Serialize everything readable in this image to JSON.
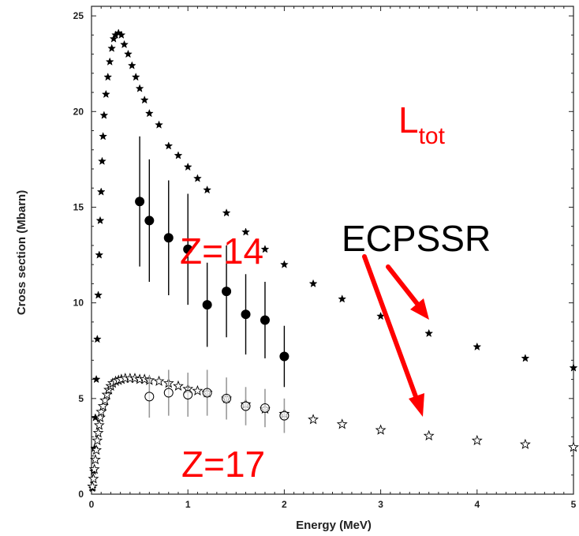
{
  "chart_data": {
    "type": "scatter",
    "xlabel": "Energy (MeV)",
    "ylabel": "Cross section (Mbarn)",
    "xlim": [
      0,
      5
    ],
    "ylim": [
      0,
      25.5
    ],
    "x_ticks": [
      0,
      1,
      2,
      3,
      4,
      5
    ],
    "y_ticks": [
      0,
      5,
      10,
      15,
      20,
      25
    ],
    "grid": false,
    "annotations": {
      "ltot_main": "L",
      "ltot_sub": "tot",
      "ecpssr": "ECPSSR",
      "z14": "Z=14",
      "z17": "Z=17"
    },
    "colors": {
      "annotation": "#ff0000",
      "marker": "#000000",
      "error_bar_z17": "#999999"
    },
    "series": [
      {
        "marker": "filled-star",
        "points": [
          [
            0.01,
            0.3
          ],
          [
            0.02,
            1.2
          ],
          [
            0.03,
            2.4
          ],
          [
            0.04,
            4.0
          ],
          [
            0.05,
            6.0
          ],
          [
            0.06,
            8.1
          ],
          [
            0.07,
            10.4
          ],
          [
            0.08,
            12.5
          ],
          [
            0.09,
            14.3
          ],
          [
            0.1,
            15.8
          ],
          [
            0.11,
            17.4
          ],
          [
            0.12,
            18.7
          ],
          [
            0.13,
            19.8
          ],
          [
            0.15,
            20.9
          ],
          [
            0.17,
            21.8
          ],
          [
            0.19,
            22.6
          ],
          [
            0.21,
            23.3
          ],
          [
            0.23,
            23.8
          ],
          [
            0.25,
            24.0
          ],
          [
            0.28,
            24.1
          ],
          [
            0.31,
            24.0
          ],
          [
            0.34,
            23.5
          ],
          [
            0.38,
            23.0
          ],
          [
            0.42,
            22.4
          ],
          [
            0.46,
            21.8
          ],
          [
            0.5,
            21.2
          ],
          [
            0.55,
            20.6
          ],
          [
            0.6,
            19.9
          ],
          [
            0.7,
            19.3
          ],
          [
            0.8,
            18.2
          ],
          [
            0.9,
            17.7
          ],
          [
            1.0,
            17.1
          ],
          [
            1.1,
            16.5
          ],
          [
            1.2,
            15.9
          ],
          [
            1.4,
            14.7
          ],
          [
            1.6,
            13.7
          ],
          [
            1.8,
            12.8
          ],
          [
            2.0,
            12.0
          ],
          [
            2.3,
            11.0
          ],
          [
            2.6,
            10.2
          ],
          [
            3.0,
            9.3
          ],
          [
            3.5,
            8.4
          ],
          [
            4.0,
            7.7
          ],
          [
            4.5,
            7.1
          ],
          [
            5.0,
            6.6
          ]
        ]
      },
      {
        "marker": "open-star",
        "points": [
          [
            0.01,
            0.4
          ],
          [
            0.02,
            0.8
          ],
          [
            0.03,
            1.3
          ],
          [
            0.04,
            1.8
          ],
          [
            0.05,
            2.3
          ],
          [
            0.06,
            2.8
          ],
          [
            0.07,
            3.2
          ],
          [
            0.08,
            3.6
          ],
          [
            0.09,
            4.0
          ],
          [
            0.1,
            4.3
          ],
          [
            0.12,
            4.6
          ],
          [
            0.14,
            4.9
          ],
          [
            0.16,
            5.2
          ],
          [
            0.18,
            5.45
          ],
          [
            0.2,
            5.65
          ],
          [
            0.22,
            5.8
          ],
          [
            0.25,
            5.9
          ],
          [
            0.28,
            5.95
          ],
          [
            0.31,
            6.0
          ],
          [
            0.35,
            6.05
          ],
          [
            0.4,
            6.05
          ],
          [
            0.45,
            6.05
          ],
          [
            0.5,
            6.0
          ],
          [
            0.55,
            6.0
          ],
          [
            0.6,
            5.95
          ],
          [
            0.7,
            5.9
          ],
          [
            0.8,
            5.8
          ],
          [
            0.9,
            5.65
          ],
          [
            1.0,
            5.5
          ],
          [
            1.1,
            5.4
          ],
          [
            1.2,
            5.3
          ],
          [
            1.4,
            5.0
          ],
          [
            1.6,
            4.7
          ],
          [
            1.8,
            4.45
          ],
          [
            2.0,
            4.2
          ],
          [
            2.3,
            3.9
          ],
          [
            2.6,
            3.65
          ],
          [
            3.0,
            3.35
          ],
          [
            3.5,
            3.05
          ],
          [
            4.0,
            2.8
          ],
          [
            4.5,
            2.6
          ],
          [
            5.0,
            2.45
          ]
        ]
      },
      {
        "marker": "filled-circle",
        "error_bars": true,
        "points": [
          {
            "x": 0.5,
            "y": 15.3,
            "err": 3.4
          },
          {
            "x": 0.6,
            "y": 14.3,
            "err": 3.2
          },
          {
            "x": 0.8,
            "y": 13.4,
            "err": 3.0
          },
          {
            "x": 1.0,
            "y": 12.8,
            "err": 2.9
          },
          {
            "x": 1.2,
            "y": 9.9,
            "err": 2.2
          },
          {
            "x": 1.4,
            "y": 10.6,
            "err": 2.4
          },
          {
            "x": 1.6,
            "y": 9.4,
            "err": 2.1
          },
          {
            "x": 1.8,
            "y": 9.1,
            "err": 2.0
          },
          {
            "x": 2.0,
            "y": 7.2,
            "err": 1.6
          }
        ]
      },
      {
        "marker": "open-circle",
        "error_bars": true,
        "points": [
          {
            "x": 0.6,
            "y": 5.1,
            "err": 1.1
          },
          {
            "x": 0.8,
            "y": 5.3,
            "err": 1.2
          },
          {
            "x": 1.0,
            "y": 5.2,
            "err": 1.15
          },
          {
            "x": 1.2,
            "y": 5.3,
            "err": 1.2
          },
          {
            "x": 1.4,
            "y": 5.0,
            "err": 1.1
          },
          {
            "x": 1.6,
            "y": 4.6,
            "err": 1.0
          },
          {
            "x": 1.8,
            "y": 4.5,
            "err": 1.0
          },
          {
            "x": 2.0,
            "y": 4.1,
            "err": 0.9
          }
        ]
      }
    ]
  }
}
